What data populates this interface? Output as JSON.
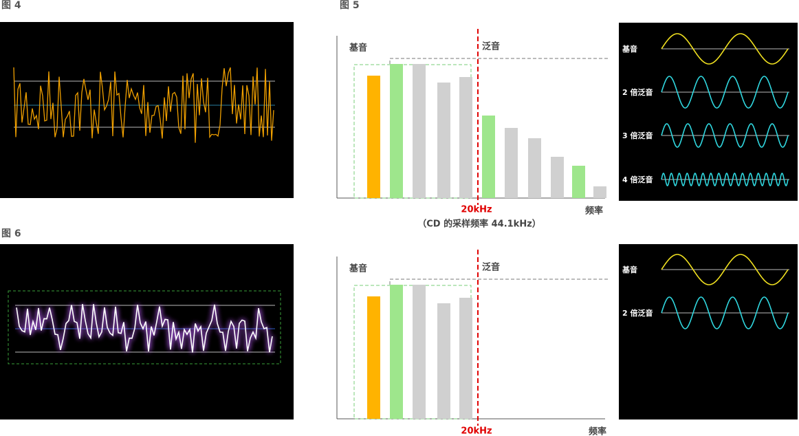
{
  "figure4": {
    "label": "图 4"
  },
  "figure5": {
    "label": "图 5",
    "spectrum": {
      "fundamental": "基音",
      "overtone": "泛音",
      "cutoff": "20kHz",
      "axis": "频率",
      "note": "（CD 的采样频率 44.1kHz）"
    },
    "waves": [
      "基音",
      "2 倍泛音",
      "3 倍泛音",
      "4 倍泛音"
    ]
  },
  "figure6": {
    "label": "图 6",
    "spectrum": {
      "fundamental": "基音",
      "overtone": "泛音",
      "cutoff": "20kHz",
      "axis": "频率"
    },
    "waves": [
      "基音",
      "2 倍泛音"
    ]
  }
}
